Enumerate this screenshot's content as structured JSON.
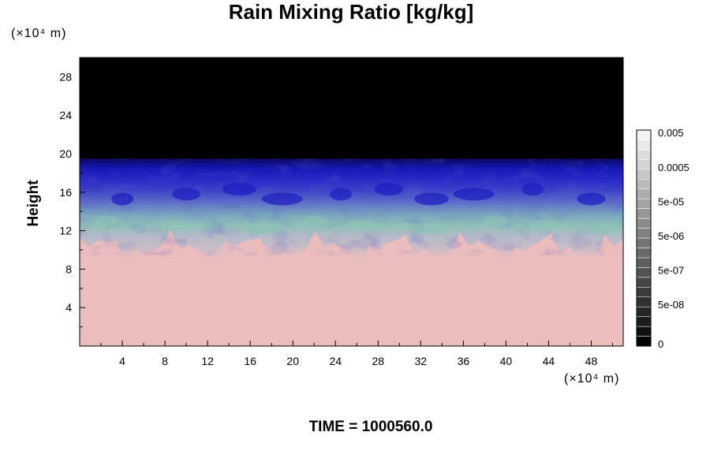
{
  "chart_data": {
    "type": "heatmap",
    "title": "Rain Mixing Ratio [kg/kg]",
    "ylabel": "Height",
    "xlabel": "",
    "x_unit_label": "(×10⁴ m)",
    "y_unit_label": "(×10⁴ m)",
    "xlim": [
      0,
      51
    ],
    "ylim": [
      0,
      30
    ],
    "x_ticks": [
      4,
      8,
      12,
      16,
      20,
      24,
      28,
      32,
      36,
      40,
      44,
      48
    ],
    "x_tick_labels": [
      "4",
      "8",
      "12",
      "16",
      "20",
      "24",
      "28",
      "32",
      "36",
      "40",
      "44",
      "48"
    ],
    "y_ticks": [
      4,
      8,
      12,
      16,
      20,
      24,
      28
    ],
    "y_tick_labels": [
      "4",
      "8",
      "12",
      "16",
      "20",
      "24",
      "28"
    ],
    "regions": [
      {
        "description": "dry upper region",
        "y_range": [
          19.5,
          30
        ],
        "color": "#000000"
      },
      {
        "description": "cloud layer",
        "y_range": [
          9,
          20
        ],
        "colors": [
          "#0a0a9a",
          "#3a3acb",
          "#7b86c8",
          "#7fbfb4",
          "#b9bccf"
        ]
      },
      {
        "description": "lower region",
        "y_range": [
          0,
          10
        ],
        "color": "#ebbdbd"
      }
    ],
    "colorbar": {
      "levels": [
        "0",
        "5e-08",
        "5e-07",
        "5e-06",
        "5e-05",
        "0.0005",
        "0.005"
      ],
      "colors": [
        "#000000",
        "#111111",
        "#1b1b1b",
        "#262626",
        "#313131",
        "#3c3c3c",
        "#474747",
        "#535353",
        "#5e5e5e",
        "#696969",
        "#757575",
        "#808080",
        "#8c8c8c",
        "#979797",
        "#a3a3a3",
        "#aeaeae",
        "#bababa",
        "#c5c5c5",
        "#d1d1d1",
        "#dcdcdc",
        "#e8e8e8",
        "#f4f4f4"
      ]
    }
  },
  "footer": {
    "time_text": "TIME = 1000560.0"
  }
}
